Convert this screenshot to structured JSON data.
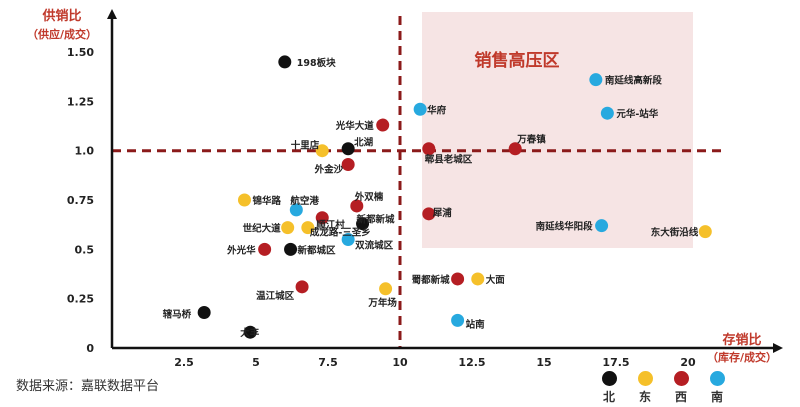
{
  "source_text": "数据来源：嘉联数据平台",
  "colors": {
    "北": "#111111",
    "东": "#f5c02a",
    "西": "#b51e23",
    "南": "#27a9df",
    "axis": "#111111",
    "guide": "#8b1a1a",
    "highlight_zone": "#f6e4e4",
    "label_red": "#c0392b"
  },
  "legend": [
    {
      "key": "北",
      "label": "北"
    },
    {
      "key": "东",
      "label": "东"
    },
    {
      "key": "西",
      "label": "西"
    },
    {
      "key": "南",
      "label": "南"
    }
  ],
  "chart_data": {
    "type": "scatter",
    "title": "",
    "ylabel_line1": "供销比",
    "ylabel_line2": "（供应/成交）",
    "xlabel_line1": "存销比",
    "xlabel_line2": "（库存/成交）",
    "xlim": [
      0,
      22
    ],
    "ylim": [
      0,
      1.6
    ],
    "x_ticks": [
      2.5,
      5,
      7.5,
      10,
      12.5,
      15,
      17.5,
      20
    ],
    "x_tick_labels": [
      "2.5",
      "5",
      "7.5",
      "10",
      "12.5",
      "15",
      "17.5",
      "20"
    ],
    "y_ticks": [
      0,
      0.25,
      0.5,
      0.75,
      1.0,
      1.25,
      1.5
    ],
    "y_tick_labels": [
      "0",
      "0.25",
      "0.5",
      "0.75",
      "1.0",
      "1.25",
      "1.50"
    ],
    "reference_lines": {
      "x": 10,
      "y": 1.0
    },
    "zone_label": "销售高压区",
    "points": [
      {
        "name": "198板块",
        "x": 6.0,
        "y": 1.45,
        "group": "北"
      },
      {
        "name": "北湖",
        "x": 8.2,
        "y": 1.01,
        "group": "北"
      },
      {
        "name": "新都新城",
        "x": 8.7,
        "y": 0.63,
        "group": "北"
      },
      {
        "name": "新都城区",
        "x": 6.2,
        "y": 0.5,
        "group": "北"
      },
      {
        "name": "辖马桥",
        "x": 3.2,
        "y": 0.18,
        "group": "北"
      },
      {
        "name": "大丰",
        "x": 4.8,
        "y": 0.08,
        "group": "北"
      },
      {
        "name": "十里店",
        "x": 7.3,
        "y": 1.0,
        "group": "东"
      },
      {
        "name": "锦华路",
        "x": 4.6,
        "y": 0.75,
        "group": "东"
      },
      {
        "name": "世纪大道",
        "x": 6.1,
        "y": 0.61,
        "group": "东"
      },
      {
        "name": "成龙路-三圣乡",
        "x": 6.8,
        "y": 0.61,
        "group": "东"
      },
      {
        "name": "万年场",
        "x": 9.5,
        "y": 0.3,
        "group": "东"
      },
      {
        "name": "大面",
        "x": 12.7,
        "y": 0.35,
        "group": "东"
      },
      {
        "name": "东大街沿线",
        "x": 20.6,
        "y": 0.59,
        "group": "东"
      },
      {
        "name": "光华大道",
        "x": 9.4,
        "y": 1.13,
        "group": "西"
      },
      {
        "name": "外金沙",
        "x": 8.2,
        "y": 0.93,
        "group": "西"
      },
      {
        "name": "外双楠",
        "x": 8.5,
        "y": 0.72,
        "group": "西"
      },
      {
        "name": "顺江村",
        "x": 7.3,
        "y": 0.66,
        "group": "西"
      },
      {
        "name": "外光华",
        "x": 5.3,
        "y": 0.5,
        "group": "西"
      },
      {
        "name": "温江城区",
        "x": 6.6,
        "y": 0.31,
        "group": "西"
      },
      {
        "name": "郫县老城区",
        "x": 11.0,
        "y": 1.01,
        "group": "西"
      },
      {
        "name": "万春镇",
        "x": 14.0,
        "y": 1.01,
        "group": "西"
      },
      {
        "name": "犀浦",
        "x": 11.0,
        "y": 0.68,
        "group": "西"
      },
      {
        "name": "蜀都新城",
        "x": 12.0,
        "y": 0.35,
        "group": "西"
      },
      {
        "name": "航空港",
        "x": 6.4,
        "y": 0.7,
        "group": "南"
      },
      {
        "name": "双流城区",
        "x": 8.2,
        "y": 0.55,
        "group": "南"
      },
      {
        "name": "华府",
        "x": 10.7,
        "y": 1.21,
        "group": "南"
      },
      {
        "name": "南延线高新段",
        "x": 16.8,
        "y": 1.36,
        "group": "南"
      },
      {
        "name": "元华-站华",
        "x": 17.2,
        "y": 1.19,
        "group": "南"
      },
      {
        "name": "南延线华阳段",
        "x": 17.0,
        "y": 0.62,
        "group": "南"
      },
      {
        "name": "站南",
        "x": 12.0,
        "y": 0.14,
        "group": "南"
      }
    ]
  }
}
